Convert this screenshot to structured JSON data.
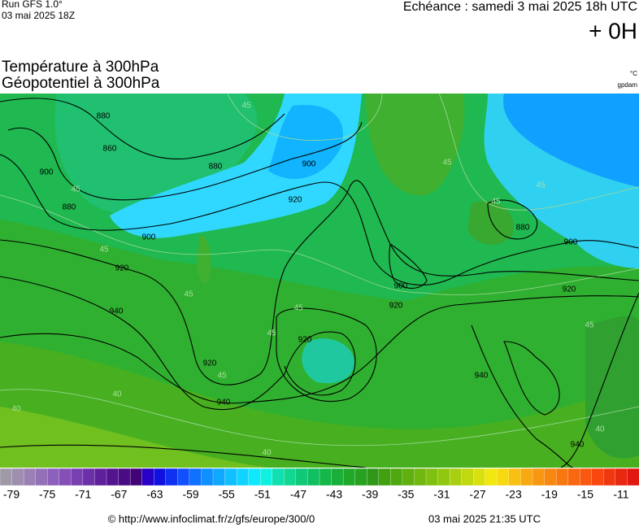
{
  "header": {
    "run": "Run GFS 1.0°",
    "run_date": "03 mai 2025 18Z",
    "echeance": "Echéance : samedi 3 mai 2025 18h UTC",
    "offset": "+ 0H",
    "title_line1": "Température à 300hPa",
    "title_line2": "Géopotentiel à 300hPa",
    "unit_temp": "°C",
    "unit_geo": "gpdam"
  },
  "map": {
    "contour_labels": [
      880,
      860,
      900,
      880,
      880,
      900,
      920,
      900,
      920,
      940,
      920,
      940,
      920,
      900,
      920,
      880,
      900,
      920,
      940,
      940,
      45,
      45,
      45,
      45,
      45,
      45,
      45,
      45,
      40,
      40,
      40,
      40,
      45,
      45,
      45
    ]
  },
  "colorbar": {
    "ticks": [
      -79,
      -75,
      -71,
      -67,
      -63,
      -59,
      -55,
      -51,
      -47,
      -43,
      -39,
      -35,
      -31,
      -27,
      -23,
      -19,
      -15,
      -11
    ],
    "colors": [
      "#a09aa8",
      "#9e8fae",
      "#9a80b4",
      "#9470b8",
      "#8c60bc",
      "#8450b8",
      "#7840b0",
      "#6c30a8",
      "#60209c",
      "#541490",
      "#4a0c84",
      "#400478",
      "#2800c8",
      "#1010e0",
      "#1030f0",
      "#1050ff",
      "#1070ff",
      "#1090ff",
      "#10a8ff",
      "#10c0ff",
      "#10d4ff",
      "#10e8ff",
      "#10f0e0",
      "#10e0b0",
      "#10d890",
      "#10c878",
      "#10c060",
      "#14b848",
      "#18b038",
      "#20a828",
      "#28a020",
      "#309818",
      "#40a010",
      "#50a810",
      "#60b010",
      "#70b810",
      "#80c010",
      "#90c810",
      "#a8d010",
      "#c0d810",
      "#d8e010",
      "#f0e810",
      "#f8d810",
      "#f8c010",
      "#f8a810",
      "#f89810",
      "#f88810",
      "#f87810",
      "#f86810",
      "#f85810",
      "#f84810",
      "#f03810",
      "#e82810",
      "#e01810"
    ]
  },
  "footer": {
    "url": "© http://www.infoclimat.fr/z/gfs/europe/300/0",
    "generated": "03 mai 2025 21:35 UTC"
  }
}
